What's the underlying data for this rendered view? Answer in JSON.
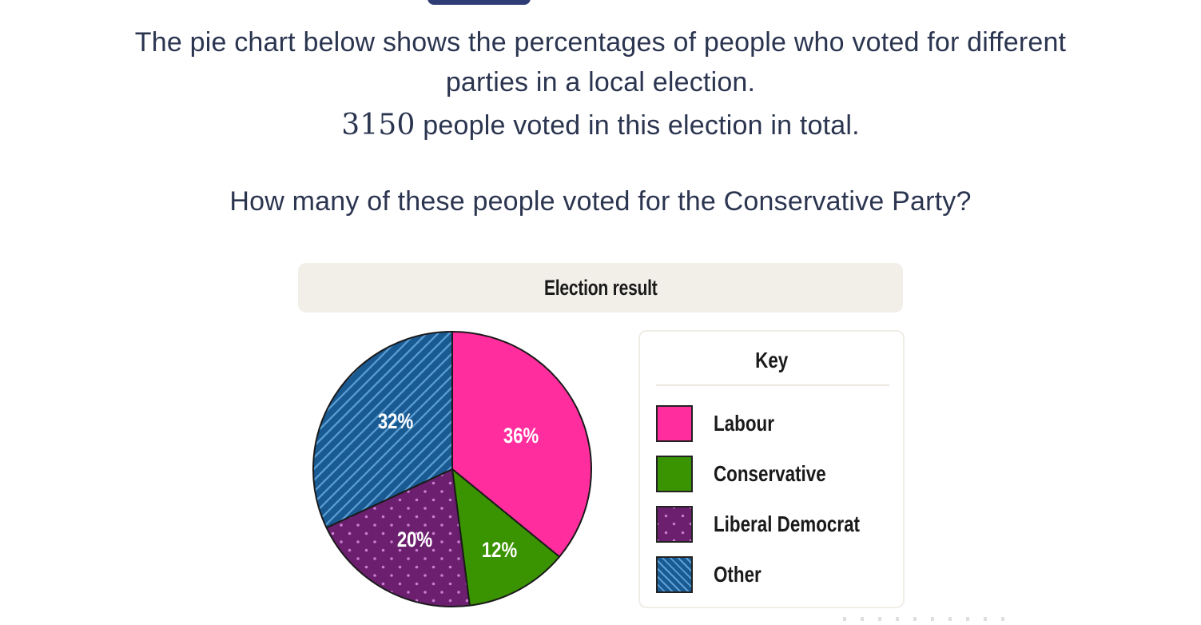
{
  "question": {
    "line1": "The pie chart below shows the percentages of people who voted for different",
    "line2": "parties in a local election.",
    "total_number": "3150",
    "line3_rest": " people voted in this election in total.",
    "prompt": "How many of these people voted for the Conservative Party?"
  },
  "chart_data": {
    "type": "pie",
    "title": "Election result",
    "legend_title": "Key",
    "legend_position": "right",
    "total_voters": 3150,
    "categories": [
      "Labour",
      "Conservative",
      "Liberal Democrat",
      "Other"
    ],
    "values": [
      36,
      12,
      20,
      32
    ],
    "labels": [
      "36%",
      "12%",
      "20%",
      "32%"
    ],
    "colors": [
      "#ff2d9e",
      "#3a9300",
      "#6b1f6e",
      "#1a5a93"
    ],
    "patterns": [
      "solid",
      "solid",
      "dots",
      "diagonal-stripes"
    ],
    "start_angle": "12 o'clock",
    "direction": "clockwise"
  },
  "legend": {
    "items": [
      {
        "label": "Labour",
        "color": "#ff2d9e"
      },
      {
        "label": "Conservative",
        "color": "#3a9300"
      },
      {
        "label": "Liberal Democrat",
        "color": "#6b1f6e"
      },
      {
        "label": "Other",
        "color": "#1a5a93"
      }
    ]
  }
}
